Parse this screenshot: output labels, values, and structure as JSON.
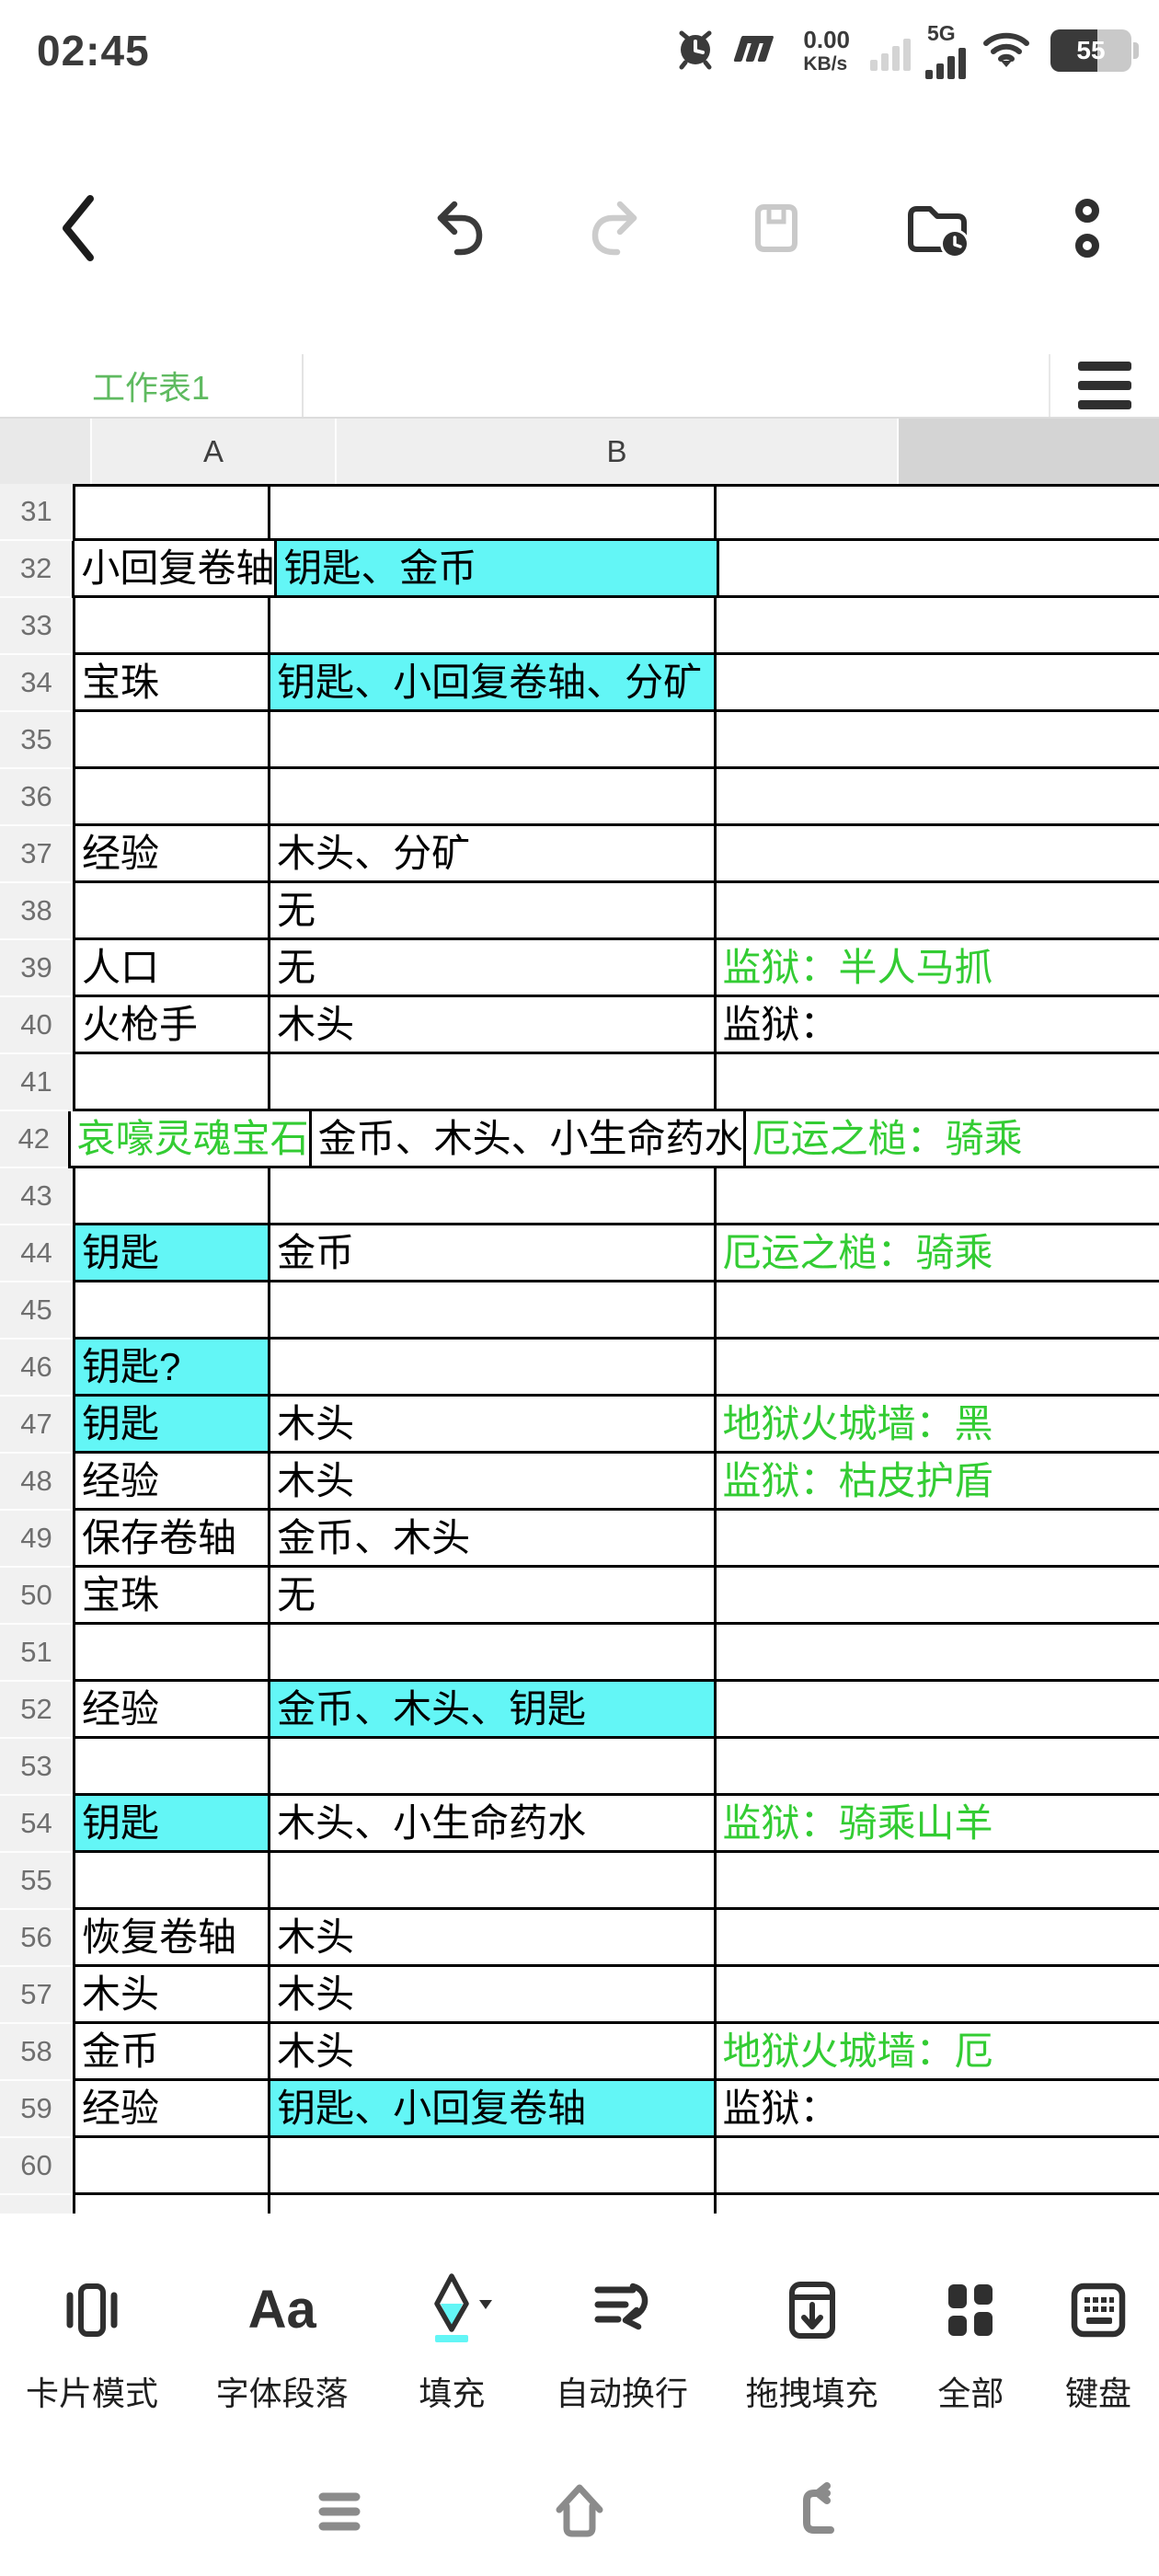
{
  "status_bar": {
    "time": "02:45",
    "net_speed_value": "0.00",
    "net_speed_unit": "KB/s",
    "network_label_5g": "5G",
    "battery_percent": "55",
    "icons": [
      "alarm-icon",
      "volte-icon",
      "signal-sim1-icon",
      "signal-sim2-icon",
      "wifi-icon",
      "battery-icon"
    ]
  },
  "toolbar": {
    "icons": [
      "back-icon",
      "undo-icon",
      "redo-icon",
      "save-icon",
      "recent-files-icon",
      "more-icon"
    ]
  },
  "tab_bar": {
    "sheet_name": "工作表1",
    "menu_icon": "hamburger-icon"
  },
  "col_headers": {
    "a": "A",
    "b": "B",
    "c": ""
  },
  "colors": {
    "cell_cyan": "#63f6f6",
    "text_green": "#33cc33",
    "tab_green": "#5fba60",
    "selected_header_gray": "#d4d4d4"
  },
  "grid": {
    "rows": [
      {
        "n": "31"
      },
      {
        "n": "32",
        "a": "小回复卷轴",
        "b": "钥匙、金币",
        "bCyan": true
      },
      {
        "n": "33"
      },
      {
        "n": "34",
        "a": "宝珠",
        "b": "钥匙、小回复卷轴、分矿",
        "bCyan": true
      },
      {
        "n": "35"
      },
      {
        "n": "36"
      },
      {
        "n": "37",
        "a": "经验",
        "b": "木头、分矿"
      },
      {
        "n": "38",
        "b": "无"
      },
      {
        "n": "39",
        "a": "人口",
        "b": "无",
        "c": "监狱：半人马抓",
        "cGreen": true
      },
      {
        "n": "40",
        "a": "火枪手",
        "b": "木头",
        "c": "监狱："
      },
      {
        "n": "41"
      },
      {
        "n": "42",
        "a": "哀嚎灵魂宝石",
        "aGreen": true,
        "b": "金币、木头、小生命药水",
        "c": "厄运之槌：骑乘",
        "cGreen": true
      },
      {
        "n": "43"
      },
      {
        "n": "44",
        "a": "钥匙",
        "aCyan": true,
        "b": "金币",
        "c": "厄运之槌：骑乘",
        "cGreen": true
      },
      {
        "n": "45"
      },
      {
        "n": "46",
        "a": "钥匙?",
        "aCyan": true
      },
      {
        "n": "47",
        "a": "钥匙",
        "aCyan": true,
        "b": "木头",
        "c": "地狱火城墙：黑",
        "cGreen": true
      },
      {
        "n": "48",
        "a": "经验",
        "b": "木头",
        "c": "监狱：枯皮护盾",
        "cGreen": true
      },
      {
        "n": "49",
        "a": "保存卷轴",
        "b": "金币、木头"
      },
      {
        "n": "50",
        "a": "宝珠",
        "b": "无"
      },
      {
        "n": "51"
      },
      {
        "n": "52",
        "a": "经验",
        "b": "金币、木头、钥匙",
        "bCyan": true
      },
      {
        "n": "53"
      },
      {
        "n": "54",
        "a": "钥匙",
        "aCyan": true,
        "b": "木头、小生命药水",
        "c": "监狱：骑乘山羊",
        "cGreen": true
      },
      {
        "n": "55"
      },
      {
        "n": "56",
        "a": "恢复卷轴",
        "b": "木头"
      },
      {
        "n": "57",
        "a": "木头",
        "b": "木头"
      },
      {
        "n": "58",
        "a": "金币",
        "b": "木头",
        "c": "地狱火城墙：厄",
        "cGreen": true
      },
      {
        "n": "59",
        "a": "经验",
        "b": "钥匙、小回复卷轴",
        "bCyan": true,
        "c": "监狱："
      },
      {
        "n": "60"
      }
    ]
  },
  "bottom_toolbar": {
    "items": [
      {
        "label": "卡片模式",
        "icon": "card-mode-icon"
      },
      {
        "label": "字体段落",
        "icon": "font-paragraph-icon"
      },
      {
        "label": "填充",
        "icon": "fill-icon"
      },
      {
        "label": "自动换行",
        "icon": "word-wrap-icon"
      },
      {
        "label": "拖拽填充",
        "icon": "drag-fill-icon"
      },
      {
        "label": "全部",
        "icon": "grid-all-icon"
      },
      {
        "label": "键盘",
        "icon": "keyboard-icon"
      }
    ]
  },
  "nav_bar": {
    "icons": [
      "menu-icon",
      "home-icon",
      "back-nav-icon"
    ]
  }
}
